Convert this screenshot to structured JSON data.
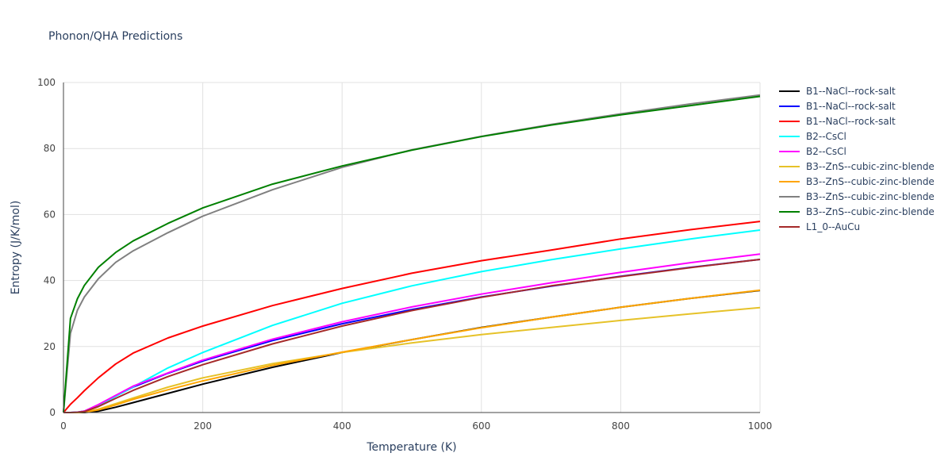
{
  "chart_data": {
    "type": "line",
    "title": "Phonon/QHA Predictions",
    "xlabel": "Temperature (K)",
    "ylabel": "Entropy (J/K/mol)",
    "xlim": [
      0,
      1000
    ],
    "ylim": [
      0,
      100
    ],
    "xticks": [
      0,
      200,
      400,
      600,
      800,
      1000
    ],
    "yticks": [
      0,
      20,
      40,
      60,
      80,
      100
    ],
    "grid": true,
    "legend_position": "right",
    "x": [
      0,
      10,
      20,
      30,
      50,
      75,
      100,
      150,
      200,
      300,
      400,
      500,
      600,
      700,
      800,
      900,
      1000
    ],
    "series": [
      {
        "name": "B1--NaCl--rock-salt",
        "color": "#000000",
        "values": [
          0,
          0,
          0,
          0,
          0.4,
          1.6,
          3.0,
          5.8,
          8.6,
          13.7,
          18.2,
          22.1,
          25.8,
          28.9,
          31.9,
          34.6,
          37.0
        ]
      },
      {
        "name": "B1--NaCl--rock-salt",
        "color": "#0000ff",
        "values": [
          0,
          0,
          0.1,
          0.4,
          2.2,
          5.0,
          7.7,
          11.9,
          15.6,
          21.8,
          26.9,
          31.2,
          35.0,
          38.3,
          41.3,
          44.0,
          46.4
        ]
      },
      {
        "name": "B1--NaCl--rock-salt",
        "color": "#ff0000",
        "values": [
          0,
          2.5,
          4.5,
          6.6,
          10.5,
          14.7,
          18.0,
          22.6,
          26.2,
          32.4,
          37.6,
          42.2,
          46.0,
          49.2,
          52.6,
          55.4,
          57.9
        ]
      },
      {
        "name": "B2--CsCl",
        "color": "#00ffff",
        "values": [
          0,
          0,
          0.1,
          0.4,
          2.0,
          4.9,
          7.8,
          13.5,
          18.2,
          26.4,
          33.1,
          38.4,
          42.7,
          46.3,
          49.6,
          52.6,
          55.3
        ]
      },
      {
        "name": "B2--CsCl",
        "color": "#ff00ff",
        "values": [
          0,
          0,
          0.1,
          0.4,
          2.4,
          5.2,
          8.0,
          12.0,
          15.9,
          22.2,
          27.5,
          32.0,
          35.9,
          39.3,
          42.5,
          45.4,
          48.0
        ]
      },
      {
        "name": "B3--ZnS--cubic-zinc-blende",
        "color": "#e6c229",
        "values": [
          0,
          0,
          0,
          0.2,
          1.0,
          2.7,
          4.4,
          7.7,
          10.5,
          14.8,
          18.2,
          21.1,
          23.6,
          25.8,
          27.9,
          29.9,
          31.8
        ]
      },
      {
        "name": "B3--ZnS--cubic-zinc-blende",
        "color": "#ffa500",
        "values": [
          0,
          0,
          0,
          0.1,
          0.8,
          2.3,
          4.0,
          6.9,
          9.6,
          14.3,
          18.3,
          22.1,
          25.7,
          28.9,
          31.9,
          34.6,
          37.1
        ]
      },
      {
        "name": "B3--ZnS--cubic-zinc-blende",
        "color": "#808080",
        "values": [
          0,
          24.0,
          31.0,
          35.0,
          40.5,
          45.5,
          49.0,
          54.5,
          59.5,
          67.5,
          74.3,
          79.6,
          83.7,
          87.3,
          90.5,
          93.5,
          96.2
        ]
      },
      {
        "name": "B3--ZnS--cubic-zinc-blende",
        "color": "#008000",
        "values": [
          0,
          28.5,
          34.5,
          38.5,
          44.0,
          48.5,
          52.0,
          57.3,
          62.0,
          69.2,
          74.7,
          79.5,
          83.6,
          87.1,
          90.2,
          93.0,
          95.8
        ]
      },
      {
        "name": "L1_0--AuCu",
        "color": "#a52a2a",
        "values": [
          0,
          0,
          0.1,
          0.3,
          1.8,
          4.3,
          6.7,
          10.9,
          14.5,
          20.8,
          26.2,
          30.9,
          34.9,
          38.4,
          41.2,
          43.9,
          46.4
        ]
      }
    ]
  }
}
